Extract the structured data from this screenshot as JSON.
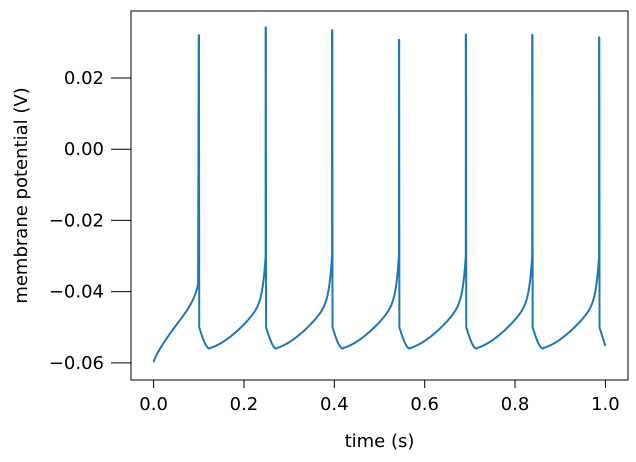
{
  "chart_data": {
    "type": "line",
    "title": "",
    "xlabel": "time (s)",
    "ylabel": "membrane potential (V)",
    "xlim": [
      -0.05,
      1.05
    ],
    "ylim": [
      -0.0648,
      0.0388
    ],
    "xticks": [
      0.0,
      0.2,
      0.4,
      0.6,
      0.8,
      1.0
    ],
    "xtick_labels": [
      "0.0",
      "0.2",
      "0.4",
      "0.6",
      "0.8",
      "1.0"
    ],
    "yticks": [
      -0.06,
      -0.04,
      -0.02,
      0.0,
      0.02
    ],
    "ytick_labels": [
      "−0.06",
      "−0.04",
      "−0.02",
      "0.00",
      "0.02"
    ],
    "grid": false,
    "color": "#1f77b4",
    "reset_potential": -0.05,
    "trough_potential": -0.056,
    "spikes": [
      {
        "t": 0.1,
        "peak": 0.032
      },
      {
        "t": 0.248,
        "peak": 0.0342
      },
      {
        "t": 0.395,
        "peak": 0.0334
      },
      {
        "t": 0.543,
        "peak": 0.0307
      },
      {
        "t": 0.691,
        "peak": 0.0322
      },
      {
        "t": 0.838,
        "peak": 0.0321
      },
      {
        "t": 0.986,
        "peak": 0.0314
      }
    ],
    "initial": {
      "t": 0.0,
      "v": -0.0598
    },
    "final": {
      "t": 1.0,
      "v": -0.0553
    }
  }
}
